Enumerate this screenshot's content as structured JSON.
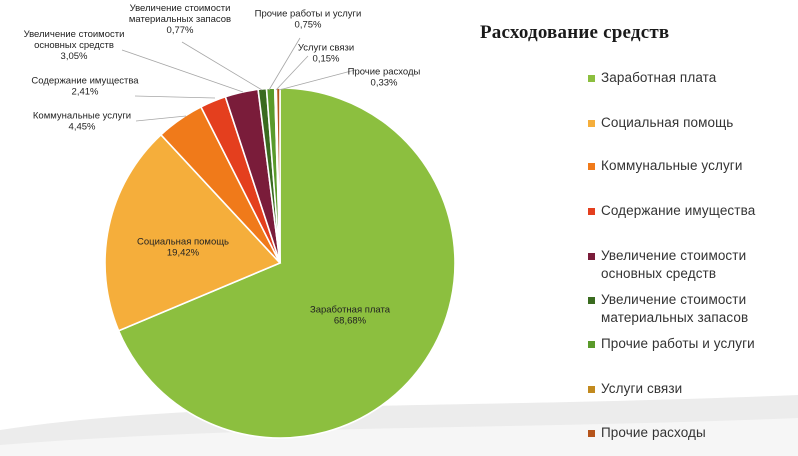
{
  "chart_data": {
    "type": "pie",
    "title": "Расходование средств",
    "slices": [
      {
        "name": "Заработная плата",
        "value": 68.68,
        "label_name": "Заработная плата",
        "label_value": "68,68%",
        "color": "#8cbf3f"
      },
      {
        "name": "Социальная помощь",
        "value": 19.42,
        "label_name": "Социальная помощь",
        "label_value": "19,42%",
        "color": "#f5ae3b"
      },
      {
        "name": "Коммунальные услуги",
        "value": 4.45,
        "label_name": "Коммунальные услуги",
        "label_value": "4,45%",
        "color": "#f07a1a"
      },
      {
        "name": "Содержание имущества",
        "value": 2.41,
        "label_name": "Содержание имущества",
        "label_value": "2,41%",
        "color": "#e43f1e"
      },
      {
        "name": "Увеличение стоимости основных средств",
        "value": 3.05,
        "label_name": "Увеличение стоимости основных средств",
        "label_value": "3,05%",
        "color": "#7a1c3a"
      },
      {
        "name": "Увеличение стоимости материальных запасов",
        "value": 0.77,
        "label_name": "Увеличение стоимости материальных запасов",
        "label_value": "0,77%",
        "color": "#3a6b1f"
      },
      {
        "name": "Прочие работы и услуги",
        "value": 0.75,
        "label_name": "Прочие работы и услуги",
        "label_value": "0,75%",
        "color": "#5a9a2b"
      },
      {
        "name": "Услуги связи",
        "value": 0.15,
        "label_name": "Услуги связи",
        "label_value": "0,15%",
        "color": "#c28a1e"
      },
      {
        "name": "Прочие расходы",
        "value": 0.33,
        "label_name": "Прочие расходы",
        "label_value": "0,33%",
        "color": "#b5541b"
      }
    ],
    "legend": {
      "position": "right",
      "items": [
        {
          "label": "Заработная плата",
          "color": "#8cbf3f"
        },
        {
          "label": "Социальная помощь",
          "color": "#f5ae3b"
        },
        {
          "label": "Коммунальные услуги",
          "color": "#f07a1a"
        },
        {
          "label": "Содержание имущества",
          "color": "#e43f1e"
        },
        {
          "label": "Увеличение стоимости основных средств",
          "color": "#7a1c3a"
        },
        {
          "label": "Увеличение стоимости материальных запасов",
          "color": "#3a6b1f"
        },
        {
          "label": "Прочие работы и услуги",
          "color": "#5a9a2b"
        },
        {
          "label": "Услуги связи",
          "color": "#c28a1e"
        },
        {
          "label": "Прочие расходы",
          "color": "#b5541b"
        }
      ]
    }
  }
}
